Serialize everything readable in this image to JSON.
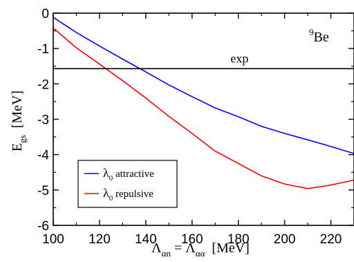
{
  "chart_data": {
    "type": "line",
    "xlabel": "Λαn = Λαα  [MeV]",
    "xlabel_parts": {
      "lambda1": "Λ",
      "sub1": "αn",
      "eq": " = ",
      "lambda2": "Λ",
      "sub2": "αα",
      "unit": "  [MeV]"
    },
    "ylabel": "Egs  [MeV]",
    "ylabel_parts": {
      "E": "E",
      "sub": "gs",
      "unit": "  [MeV]"
    },
    "xlim": [
      100,
      230
    ],
    "ylim": [
      -6,
      0
    ],
    "xticks": [
      100,
      120,
      140,
      160,
      180,
      200,
      220
    ],
    "yticks": [
      0,
      -1,
      -2,
      -3,
      -4,
      -5,
      -6
    ],
    "xtick_labels": [
      "100",
      "120",
      "140",
      "160",
      "180",
      "200",
      "220"
    ],
    "ytick_labels": [
      "0",
      "-1",
      "-2",
      "-3",
      "-4",
      "-5",
      "-6"
    ],
    "grid": false,
    "legend_position": "lower-left",
    "series": [
      {
        "name": "λ0 attractive",
        "name_parts": {
          "lambda": "λ",
          "sub": "0",
          "rest": " attractive"
        },
        "color": "#0000ff",
        "x": [
          100,
          110,
          120,
          130,
          140,
          150,
          160,
          170,
          180,
          190,
          200,
          210,
          220,
          230
        ],
        "y": [
          -0.12,
          -0.55,
          -0.93,
          -1.3,
          -1.66,
          -2.03,
          -2.36,
          -2.68,
          -2.93,
          -3.2,
          -3.4,
          -3.58,
          -3.77,
          -3.97
        ]
      },
      {
        "name": "λ0 repulsive",
        "name_parts": {
          "lambda": "λ",
          "sub": "0",
          "rest": " repulsive"
        },
        "color": "#ff0000",
        "x": [
          100,
          110,
          120,
          130,
          140,
          150,
          160,
          170,
          180,
          190,
          200,
          210,
          220,
          230
        ],
        "y": [
          -0.42,
          -0.98,
          -1.44,
          -1.91,
          -2.4,
          -2.92,
          -3.4,
          -3.9,
          -4.25,
          -4.6,
          -4.83,
          -4.96,
          -4.86,
          -4.72
        ]
      }
    ],
    "reference_line": {
      "y": -1.57,
      "label": "exp",
      "color": "#000000"
    },
    "annotation": {
      "superscript": "9",
      "text": "Be"
    }
  }
}
